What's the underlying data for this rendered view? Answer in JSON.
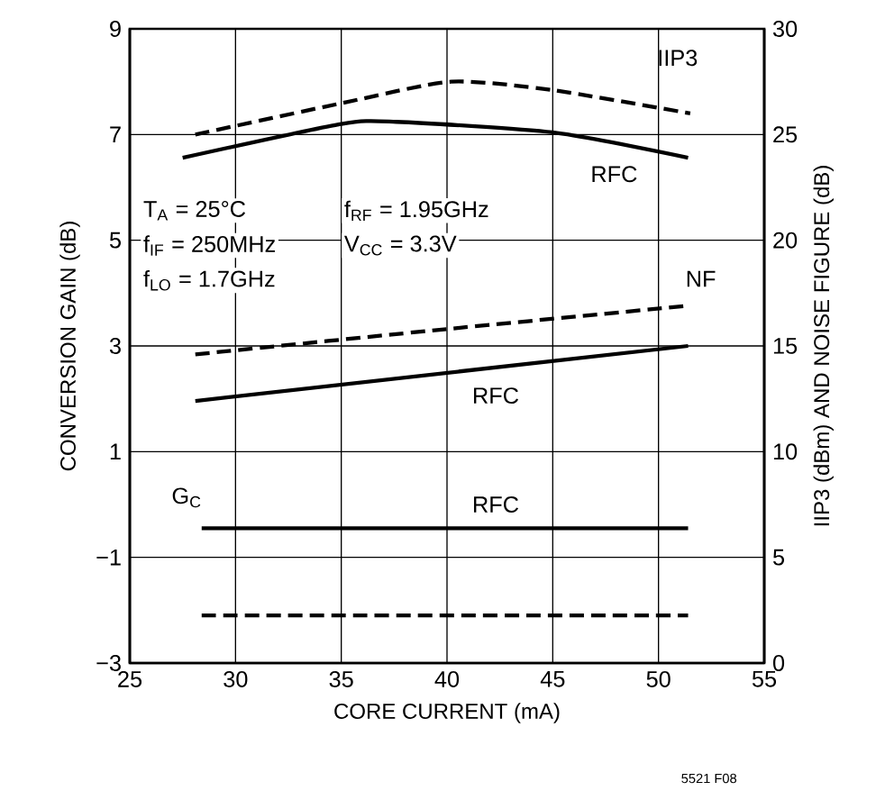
{
  "chart_data": {
    "type": "line",
    "xlabel": "CORE CURRENT (mA)",
    "ylabel": "CONVERSION GAIN (dB)",
    "y2label": "IIP3 (dBm) AND NOISE FIGURE (dB)",
    "xlim": [
      25,
      55
    ],
    "xticks": [
      25,
      30,
      35,
      40,
      45,
      50,
      55
    ],
    "ylim": [
      -3,
      9
    ],
    "yticks": [
      {
        "value": -3,
        "label": "−3"
      },
      {
        "value": -1,
        "label": "−1"
      },
      1,
      3,
      5,
      7,
      9
    ],
    "y2lim": [
      0,
      30
    ],
    "y2ticks": [
      0,
      5,
      10,
      15,
      20,
      25,
      30
    ],
    "grid": true,
    "series": [
      {
        "color": "#000000",
        "line_style": "dashed",
        "axis": "y2",
        "x": [
          28.1,
          35.1,
          40.2,
          45.0,
          51.5
        ],
        "values": [
          25.0,
          26.5,
          27.5,
          27.1,
          26.0
        ]
      },
      {
        "color": "#000000",
        "line_style": "solid",
        "axis": "y2",
        "x": [
          27.5,
          35.0,
          37.6,
          45.0,
          51.4
        ],
        "values": [
          23.9,
          25.5,
          25.6,
          25.1,
          23.9
        ]
      },
      {
        "color": "#000000",
        "line_style": "dashed",
        "axis": "y2",
        "x": [
          28.1,
          40.0,
          51.4
        ],
        "values": [
          14.6,
          15.8,
          16.9
        ]
      },
      {
        "color": "#000000",
        "line_style": "solid",
        "axis": "y2",
        "x": [
          28.1,
          51.4
        ],
        "values": [
          12.4,
          15.0
        ]
      },
      {
        "color": "#000000",
        "line_style": "solid",
        "x": [
          28.4,
          51.4
        ],
        "values": [
          -0.45,
          -0.45
        ]
      },
      {
        "color": "#000000",
        "line_style": "dashed",
        "x": [
          28.4,
          51.4
        ],
        "values": [
          -2.1,
          -2.1
        ]
      }
    ],
    "annotations": [
      "IIP3",
      "RFC",
      "NF",
      "RFC",
      "RFC",
      "G$_{C}$",
      "T$_{A}$ = 25°C",
      "f$_{IF}$ = 250MHz",
      "f$_{LO}$ = 1.7GHz",
      "f$_{RF}$ = 1.95GHz",
      "V$_{CC}$ = 3.3V",
      "5521 F08"
    ]
  }
}
